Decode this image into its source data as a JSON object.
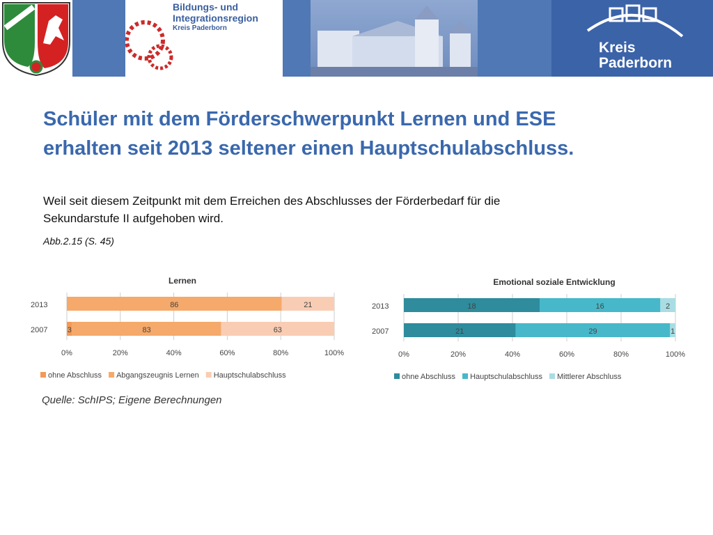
{
  "header": {
    "nrw_logo_name": "nrw-coat-of-arms",
    "bir_line1": "Bildungs- und",
    "bir_line2": "Integrationsregion",
    "bir_line3": "Kreis Paderborn",
    "kp_line1": "Kreis",
    "kp_line2": "Paderborn",
    "colors": {
      "bar": "#4f78b5",
      "kp": "#3b63a8",
      "bir_text": "#3a5f9f"
    }
  },
  "slide": {
    "title_line1": "Schüler mit dem Förderschwerpunkt Lernen und ESE",
    "title_line2": "erhalten seit 2013 seltener einen Hauptschulabschluss.",
    "subtitle_line1": "Weil seit diesem Zeitpunkt mit dem Erreichen des Abschlusses der Förderbedarf für die",
    "subtitle_line2": "Sekundarstufe II aufgehoben wird.",
    "figure_ref": "Abb.2.15 (S. 45)",
    "source": "Quelle: SchIPS; Eigene Berechnungen",
    "title_color": "#3a68ad"
  },
  "chart_data": [
    {
      "type": "bar",
      "orientation": "horizontal",
      "stacked": true,
      "normalized": true,
      "title": "Lernen",
      "categories": [
        "2013",
        "2007"
      ],
      "series": [
        {
          "name": "ohne Abschluss",
          "color": "#f39a56",
          "values": [
            0,
            3
          ]
        },
        {
          "name": "Abgangszeugnis Lernen",
          "color": "#f5a96a",
          "values": [
            86,
            83
          ]
        },
        {
          "name": "Hauptschulabschluss",
          "color": "#f9cdb3",
          "values": [
            21,
            63
          ]
        }
      ],
      "xticks": [
        "0%",
        "20%",
        "40%",
        "60%",
        "80%",
        "100%"
      ],
      "xlim": [
        0,
        100
      ],
      "grid": true,
      "legend": "bottom"
    },
    {
      "type": "bar",
      "orientation": "horizontal",
      "stacked": true,
      "normalized": true,
      "title": "Emotional soziale Entwicklung",
      "categories": [
        "2013",
        "2007"
      ],
      "series": [
        {
          "name": "ohne Abschluss",
          "color": "#2e8c9c",
          "values": [
            18,
            21
          ]
        },
        {
          "name": "Hauptschulabschluss",
          "color": "#47b8c9",
          "values": [
            16,
            29
          ]
        },
        {
          "name": "Mittlerer Abschluss",
          "color": "#a9dde3",
          "values": [
            2,
            1
          ]
        }
      ],
      "xticks": [
        "0%",
        "20%",
        "40%",
        "60%",
        "80%",
        "100%"
      ],
      "xlim": [
        0,
        100
      ],
      "grid": true,
      "legend": "bottom"
    }
  ]
}
